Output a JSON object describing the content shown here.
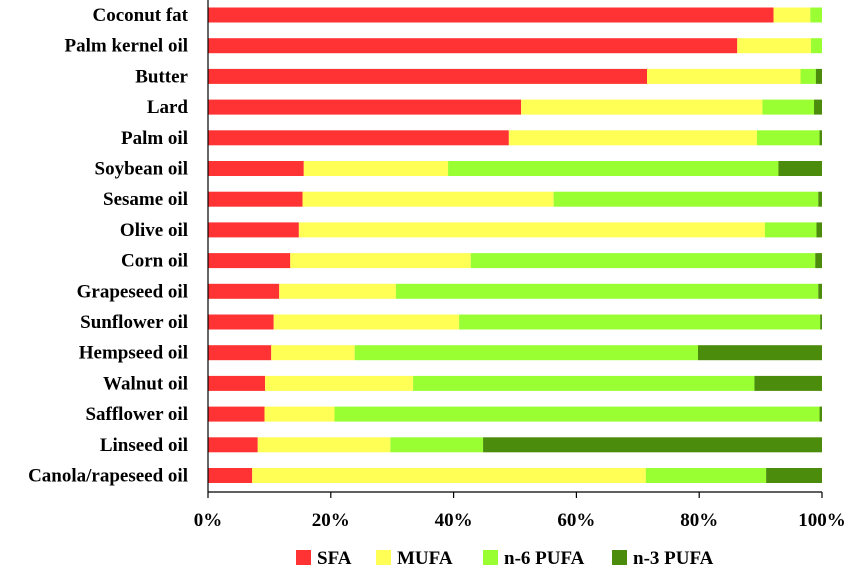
{
  "chart_data": {
    "type": "bar",
    "orientation": "horizontal",
    "stacked": true,
    "categories": [
      "Coconut fat",
      "Palm kernel oil",
      "Butter",
      "Lard",
      "Palm oil",
      "Soybean oil",
      "Sesame oil",
      "Olive oil",
      "Corn oil",
      "Grapeseed oil",
      "Sunflower oil",
      "Hempseed oil",
      "Walnut oil",
      "Safflower oil",
      "Linseed oil",
      "Canola/rapeseed oil"
    ],
    "series": [
      {
        "name": "SFA",
        "color": "#ff3333",
        "values": [
          92.1,
          86.2,
          71.5,
          51.0,
          49.0,
          15.6,
          15.4,
          14.8,
          13.4,
          11.6,
          10.7,
          10.3,
          9.3,
          9.2,
          8.1,
          7.2
        ]
      },
      {
        "name": "MUFA",
        "color": "#ffff55",
        "values": [
          6.0,
          12.0,
          25.0,
          39.3,
          40.4,
          23.5,
          40.9,
          75.9,
          29.4,
          19.0,
          30.2,
          13.6,
          24.1,
          11.4,
          21.6,
          64.1
        ]
      },
      {
        "name": "n-6 PUFA",
        "color": "#99ff33",
        "values": [
          1.9,
          1.8,
          2.5,
          8.4,
          10.2,
          53.8,
          43.1,
          8.4,
          56.1,
          68.8,
          58.8,
          55.9,
          55.6,
          79.0,
          15.1,
          19.6
        ]
      },
      {
        "name": "n-3 PUFA",
        "color": "#4c8c0c",
        "values": [
          0.0,
          0.0,
          1.0,
          1.3,
          0.4,
          7.1,
          0.6,
          0.9,
          1.1,
          0.6,
          0.3,
          20.2,
          11.0,
          0.4,
          55.2,
          9.1
        ]
      }
    ],
    "xlim": [
      0,
      100
    ],
    "xticks": [
      "0%",
      "20%",
      "40%",
      "60%",
      "80%",
      "100%"
    ],
    "legend_position": "bottom",
    "grid": false
  }
}
